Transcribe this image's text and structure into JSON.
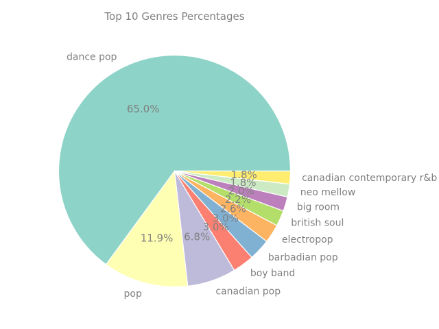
{
  "chart_data": {
    "type": "pie",
    "title": "Top 10 Genres Percentages",
    "categories": [
      "dance pop",
      "pop",
      "canadian pop",
      "boy band",
      "barbadian pop",
      "electropop",
      "british soul",
      "big room",
      "neo mellow",
      "canadian contemporary r&b"
    ],
    "values": [
      65.0,
      11.9,
      6.8,
      3.0,
      3.0,
      2.6,
      2.2,
      2.0,
      1.8,
      1.8
    ],
    "value_labels": [
      "65.0%",
      "11.9%",
      "6.8%",
      "3.0%",
      "3.0%",
      "2.6%",
      "2.2%",
      "2.0%",
      "1.8%",
      "1.8%"
    ],
    "colors": [
      "#8dd3c7",
      "#ffffb3",
      "#bebada",
      "#fb8072",
      "#80b1d3",
      "#fdb462",
      "#b3de69",
      "#bc80bd",
      "#ccebc5",
      "#ffed6f"
    ],
    "start_angle": "east",
    "direction": "counterclockwise"
  }
}
